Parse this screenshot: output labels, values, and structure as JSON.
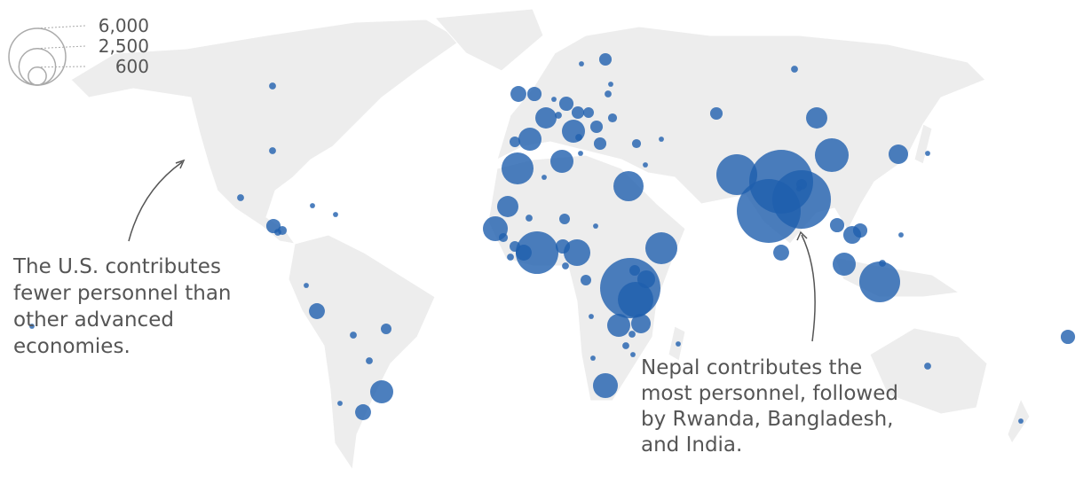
{
  "legend": {
    "sizeticks": [
      {
        "value": 6000,
        "label": "6,000"
      },
      {
        "value": 2500,
        "label": "2,500"
      },
      600
    ]
  },
  "annotations": [
    {
      "lines": [
        "The U.S. contributes",
        "fewer personnel than",
        "other advanced",
        "economies."
      ]
    },
    {
      "lines": [
        "Nepal contributes the",
        "most personnel, followed",
        "by Rwanda, Bangladesh,",
        "and India."
      ]
    }
  ],
  "bubbles": {
    "color": "#1f5fae",
    "values": [
      90,
      90,
      90,
      380,
      150,
      90,
      50,
      50,
      50,
      470,
      210,
      90,
      90,
      990,
      470,
      50,
      50,
      470,
      380,
      840,
      380,
      290,
      210,
      990,
      290,
      290,
      150,
      90,
      290,
      50,
      990,
      210,
      1900,
      990,
      90,
      50,
      50,
      90,
      150,
      50,
      50,
      1690,
      290,
      840,
      90,
      840,
      1150,
      150,
      90,
      3380,
      210,
      380,
      1320,
      470,
      210,
      90,
      90,
      210,
      50,
      50,
      50,
      1900,
      6770,
      2340,
      590,
      210,
      990,
      710,
      90,
      90,
      50,
      50,
      1150,
      50,
      50,
      3100,
      7590,
      7590,
      6380,
      210,
      470,
      2120,
      710,
      50,
      380,
      590,
      380,
      990,
      3100,
      90,
      50,
      90,
      50,
      380,
      50
    ]
  }
}
